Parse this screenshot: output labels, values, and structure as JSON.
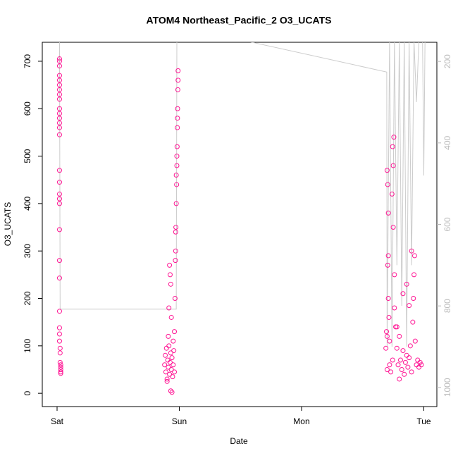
{
  "chart_data": {
    "type": "scatter",
    "title": "ATOM4 Northeast_Pacific_2 O3_UCATS",
    "x_label": "Date",
    "y_label": "O3_UCATS",
    "xlim": [
      -0.121,
      3.107
    ],
    "ylim": [
      -28,
      740
    ],
    "y2lim": [
      1047,
      153
    ],
    "xticks": [
      {
        "value": 0,
        "label": "Sat"
      },
      {
        "value": 1,
        "label": "Sun"
      },
      {
        "value": 2,
        "label": "Mon"
      },
      {
        "value": 3,
        "label": "Tue"
      }
    ],
    "yticks": [
      0,
      100,
      200,
      300,
      400,
      500,
      600,
      700
    ],
    "y2ticks": [
      200,
      400,
      600,
      800,
      1000
    ],
    "series": [
      {
        "type": "line",
        "axis": "y2",
        "color": "#cccccc",
        "x": [
          0.02,
          0.025,
          0.975,
          0.98,
          0.99,
          1.0,
          1.55,
          2.697,
          2.7,
          2.72,
          2.74,
          2.76,
          2.78,
          2.8,
          2.82,
          2.84,
          2.86,
          2.88,
          2.9,
          2.92,
          2.94,
          2.96,
          2.98,
          2.99,
          3.0,
          3.01
        ],
        "values": [
          150,
          808,
          808,
          150,
          150,
          150,
          150,
          226,
          900,
          150,
          900,
          150,
          700,
          150,
          800,
          150,
          900,
          150,
          700,
          150,
          300,
          150,
          150,
          150,
          480,
          150
        ]
      },
      {
        "type": "scatter",
        "color": "#ff1493",
        "x": [
          0.02,
          0.02,
          0.02,
          0.02,
          0.02,
          0.02,
          0.02,
          0.02,
          0.02,
          0.02,
          0.02,
          0.02,
          0.02,
          0.02,
          0.02,
          0.02,
          0.02,
          0.02,
          0.02,
          0.02,
          0.02,
          0.02,
          0.02,
          0.02,
          0.02,
          0.02,
          0.02,
          0.025,
          0.025,
          0.025,
          0.03,
          0.03,
          0.03,
          0.03,
          0.03,
          0.88,
          0.885,
          0.89,
          0.895,
          0.9,
          0.905,
          0.91,
          0.915,
          0.92,
          0.925,
          0.93,
          0.935,
          0.94,
          0.945,
          0.95,
          0.955,
          0.96,
          0.9,
          0.93,
          0.94,
          0.91,
          0.915,
          0.92,
          0.925,
          0.93,
          0.935,
          0.95,
          0.96,
          0.965,
          0.97,
          0.972,
          0.975,
          0.978,
          0.98,
          0.982,
          0.984,
          0.986,
          0.988,
          0.99,
          0.99,
          0.985,
          0.98,
          0.975,
          0.97,
          0.968,
          2.7,
          2.7,
          2.705,
          2.71,
          2.71,
          2.705,
          2.71,
          2.715,
          2.72,
          2.72,
          2.73,
          2.74,
          2.745,
          2.75,
          2.755,
          2.75,
          2.76,
          2.76,
          2.77,
          2.78,
          2.79,
          2.8,
          2.81,
          2.82,
          2.83,
          2.84,
          2.85,
          2.86,
          2.87,
          2.88,
          2.89,
          2.9,
          2.91,
          2.915,
          2.92,
          2.925,
          2.93,
          2.94,
          2.95,
          2.96,
          2.97,
          2.98,
          2.745,
          2.78,
          2.8,
          2.83,
          2.86,
          2.88,
          2.9,
          2.69,
          2.7,
          2.695
        ],
        "values": [
          705,
          700,
          690,
          670,
          660,
          650,
          640,
          630,
          620,
          600,
          590,
          580,
          570,
          560,
          545,
          470,
          445,
          420,
          410,
          400,
          345,
          280,
          243,
          173,
          138,
          125,
          110,
          95,
          85,
          65,
          60,
          55,
          50,
          45,
          42,
          60,
          80,
          45,
          95,
          30,
          70,
          55,
          100,
          40,
          65,
          85,
          50,
          75,
          35,
          60,
          90,
          45,
          25,
          5,
          2,
          120,
          180,
          270,
          250,
          230,
          160,
          110,
          130,
          200,
          300,
          350,
          400,
          440,
          480,
          520,
          560,
          600,
          640,
          680,
          660,
          580,
          500,
          460,
          340,
          280,
          50,
          470,
          440,
          380,
          290,
          270,
          200,
          160,
          110,
          60,
          45,
          420,
          520,
          480,
          540,
          350,
          250,
          180,
          140,
          95,
          60,
          30,
          70,
          50,
          90,
          40,
          65,
          80,
          55,
          75,
          100,
          45,
          150,
          200,
          250,
          290,
          110,
          60,
          70,
          55,
          65,
          60,
          70,
          140,
          120,
          210,
          230,
          185,
          300,
          95,
          120,
          130
        ]
      }
    ]
  }
}
